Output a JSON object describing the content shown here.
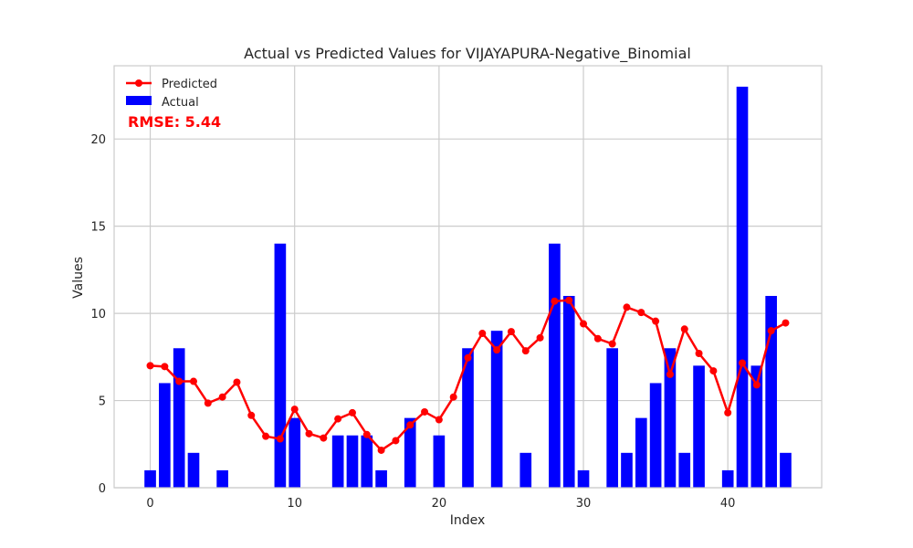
{
  "chart_data": {
    "type": "bar",
    "title": "Actual vs Predicted Values for VIJAYAPURA-Negative_Binomial",
    "xlabel": "Index",
    "ylabel": "Values",
    "xlim": [
      -2.5,
      46.5
    ],
    "ylim": [
      0,
      24.2
    ],
    "x_ticks": [
      0,
      10,
      20,
      30,
      40
    ],
    "y_ticks": [
      0,
      5,
      10,
      15,
      20
    ],
    "grid": true,
    "legend_position": "top-left",
    "x": [
      0,
      1,
      2,
      3,
      4,
      5,
      6,
      7,
      8,
      9,
      10,
      11,
      12,
      13,
      14,
      15,
      16,
      17,
      18,
      19,
      20,
      21,
      22,
      23,
      24,
      25,
      26,
      27,
      28,
      29,
      30,
      31,
      32,
      33,
      34,
      35,
      36,
      37,
      38,
      39,
      40,
      41,
      42,
      43,
      44
    ],
    "series": [
      {
        "name": "Actual",
        "kind": "bar",
        "color": "#0000ff",
        "values": [
          1,
          6,
          8,
          2,
          0,
          1,
          0,
          0,
          0,
          14,
          4,
          0,
          0,
          3,
          3,
          3,
          1,
          0,
          4,
          0,
          3,
          0,
          8,
          0,
          9,
          0,
          2,
          0,
          14,
          11,
          1,
          0,
          8,
          2,
          4,
          6,
          8,
          2,
          7,
          0,
          1,
          23,
          7,
          11,
          2
        ]
      },
      {
        "name": "Predicted",
        "kind": "line",
        "color": "#ff0000",
        "values": [
          7.0,
          6.95,
          6.1,
          6.1,
          4.85,
          5.2,
          6.05,
          4.15,
          2.95,
          2.8,
          4.5,
          3.1,
          2.85,
          3.95,
          4.3,
          3.05,
          2.15,
          2.7,
          3.6,
          4.35,
          3.9,
          5.2,
          7.45,
          8.85,
          7.9,
          8.95,
          7.85,
          8.6,
          10.7,
          10.75,
          9.4,
          8.55,
          8.25,
          10.35,
          10.05,
          9.55,
          6.5,
          9.1,
          7.7,
          6.7,
          4.3,
          7.15,
          5.9,
          9.0,
          9.45
        ]
      }
    ],
    "annotation": {
      "text": "RMSE: 5.44",
      "color": "#ff0000"
    }
  }
}
